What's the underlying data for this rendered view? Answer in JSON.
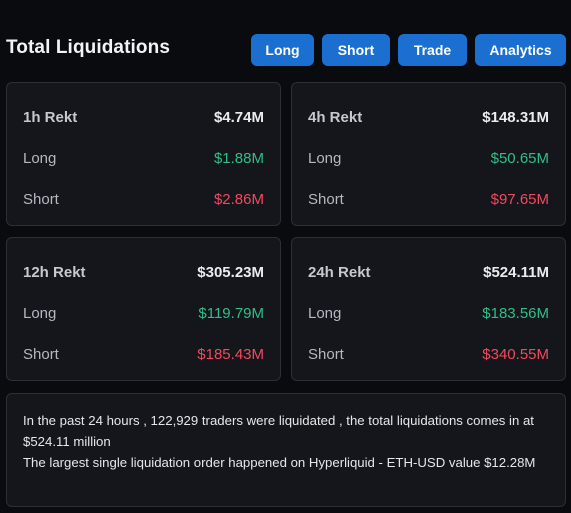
{
  "header": {
    "title": "Total Liquidations",
    "buttons": [
      "Long",
      "Short",
      "Trade",
      "Analytics"
    ]
  },
  "cards": [
    {
      "period_label": "1h Rekt",
      "total": "$4.74M",
      "long_label": "Long",
      "long_value": "$1.88M",
      "short_label": "Short",
      "short_value": "$2.86M"
    },
    {
      "period_label": "4h Rekt",
      "total": "$148.31M",
      "long_label": "Long",
      "long_value": "$50.65M",
      "short_label": "Short",
      "short_value": "$97.65M"
    },
    {
      "period_label": "12h Rekt",
      "total": "$305.23M",
      "long_label": "Long",
      "long_value": "$119.79M",
      "short_label": "Short",
      "short_value": "$185.43M"
    },
    {
      "period_label": "24h Rekt",
      "total": "$524.11M",
      "long_label": "Long",
      "long_value": "$183.56M",
      "short_label": "Short",
      "short_value": "$340.55M"
    }
  ],
  "summary": {
    "line1": "In the past 24 hours , 122,929 traders were liquidated , the total liquidations comes in at $524.11 million",
    "line2": "The largest single liquidation order happened on Hyperliquid - ETH-USD value $12.28M"
  },
  "colors": {
    "accent": "#1a6fd0",
    "long": "#2fbf86",
    "short": "#f2495e",
    "background": "#0a0b0f",
    "card": "#14161b"
  }
}
